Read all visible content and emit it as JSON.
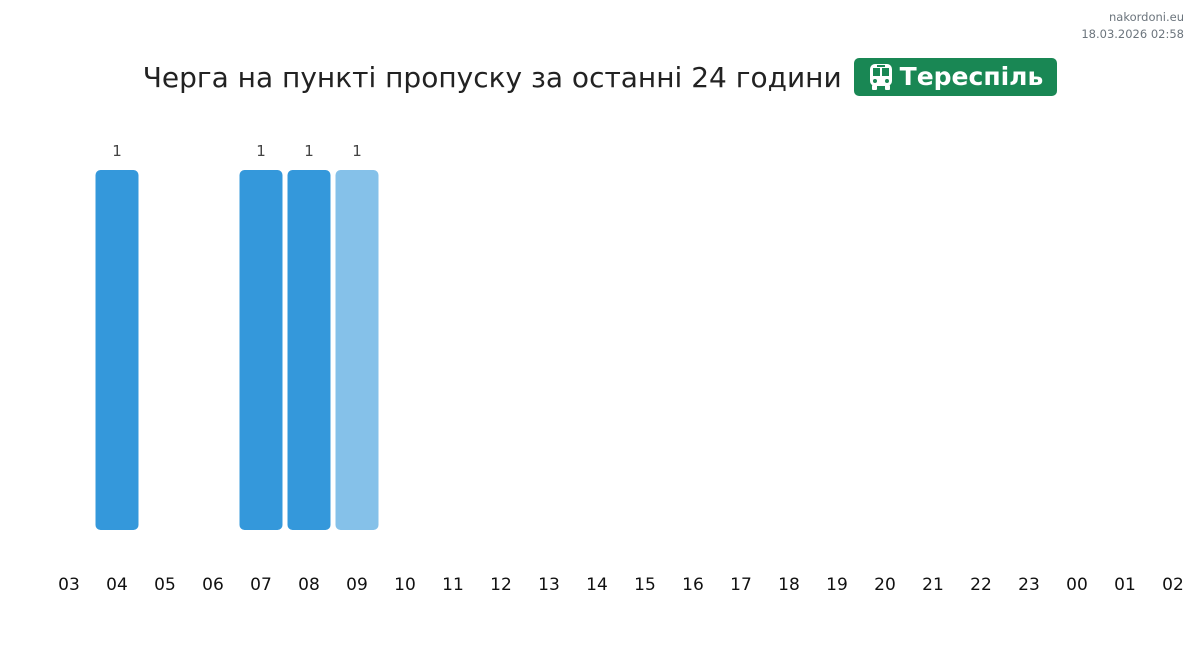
{
  "meta": {
    "site": "nakordoni.eu",
    "timestamp": "18.03.2026 02:58"
  },
  "header": {
    "title": "Черга на пункті пропуску за останні 24 години",
    "checkpoint": "Тереспіль",
    "checkpoint_icon": "bus-icon",
    "badge_color": "#198754"
  },
  "chart_data": {
    "type": "bar",
    "title": "Черга на пункті пропуску за останні 24 години",
    "categories": [
      "03",
      "04",
      "05",
      "06",
      "07",
      "08",
      "09",
      "10",
      "11",
      "12",
      "13",
      "14",
      "15",
      "16",
      "17",
      "18",
      "19",
      "20",
      "21",
      "22",
      "23",
      "00",
      "01",
      "02"
    ],
    "values": [
      0,
      1,
      0,
      0,
      1,
      1,
      1,
      0,
      0,
      0,
      0,
      0,
      0,
      0,
      0,
      0,
      0,
      0,
      0,
      0,
      0,
      0,
      0,
      0
    ],
    "highlighted_category": "09",
    "ylim": [
      0,
      1
    ],
    "grid": false,
    "colors": {
      "bar": "#3498db",
      "highlight": "#85c1e9"
    }
  }
}
